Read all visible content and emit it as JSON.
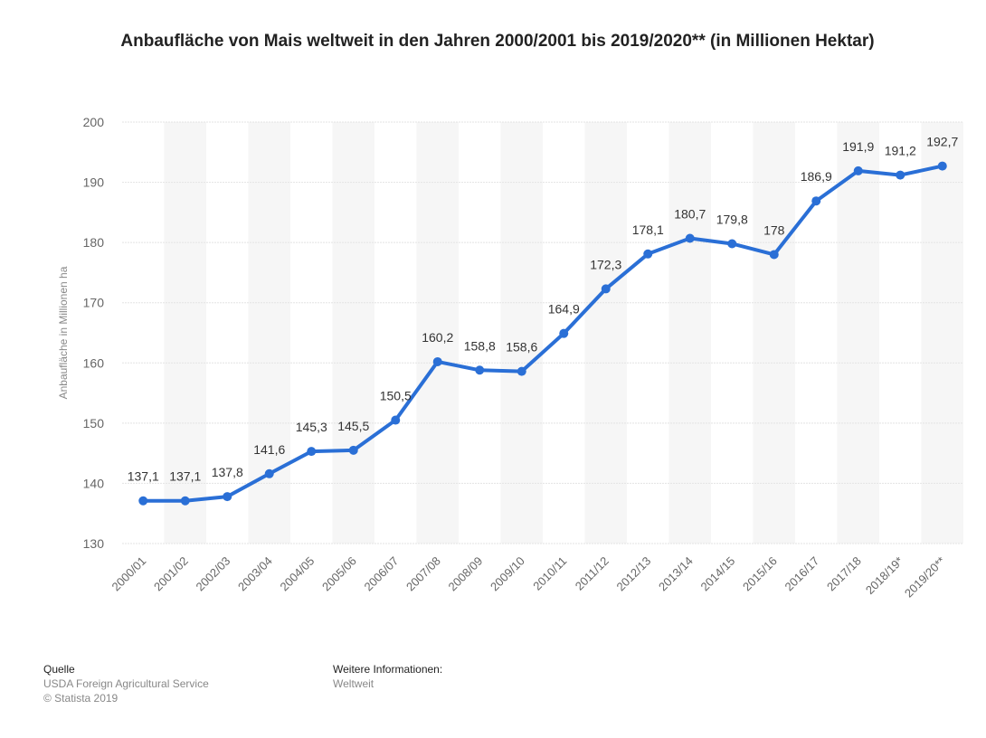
{
  "chart_data": {
    "type": "line",
    "title": "Anbaufläche von Mais weltweit in den Jahren 2000/2001 bis 2019/2020** (in Millionen Hektar)",
    "y_label": "Anbaufläche in Millionen ha",
    "categories": [
      "2000/01",
      "2001/02",
      "2002/03",
      "2003/04",
      "2004/05",
      "2005/06",
      "2006/07",
      "2007/08",
      "2008/09",
      "2009/10",
      "2010/11",
      "2011/12",
      "2012/13",
      "2013/14",
      "2014/15",
      "2015/16",
      "2016/17",
      "2017/18",
      "2018/19*",
      "2019/20**"
    ],
    "values": [
      137.1,
      137.1,
      137.8,
      141.6,
      145.3,
      145.5,
      150.5,
      160.2,
      158.8,
      158.6,
      164.9,
      172.3,
      178.1,
      180.7,
      179.8,
      178,
      186.9,
      191.9,
      191.2,
      192.7
    ],
    "value_labels": [
      "137,1",
      "137,1",
      "137,8",
      "141,6",
      "145,3",
      "145,5",
      "150,5",
      "160,2",
      "158,8",
      "158,6",
      "164,9",
      "172,3",
      "178,1",
      "180,7",
      "179,8",
      "178",
      "186,9",
      "191,9",
      "191,2",
      "192,7"
    ],
    "color": "#2a6fd6",
    "ylim": [
      130,
      200
    ],
    "yticks": [
      130,
      140,
      150,
      160,
      170,
      180,
      190,
      200
    ],
    "grid": true,
    "source_heading": "Quelle",
    "source": "USDA Foreign Agricultural Service",
    "copyright": "© Statista 2019",
    "info_heading": "Weitere Informationen:",
    "info": "Weltweit"
  }
}
